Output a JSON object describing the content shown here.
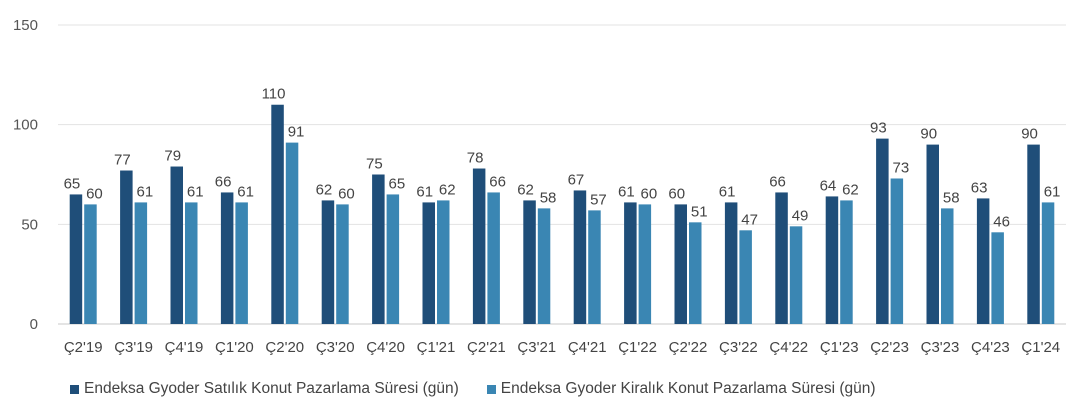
{
  "chart_data": {
    "type": "bar",
    "categories": [
      "Ç2'19",
      "Ç3'19",
      "Ç4'19",
      "Ç1'20",
      "Ç2'20",
      "Ç3'20",
      "Ç4'20",
      "Ç1'21",
      "Ç2'21",
      "Ç3'21",
      "Ç4'21",
      "Ç1'22",
      "Ç2'22",
      "Ç3'22",
      "Ç4'22",
      "Ç1'23",
      "Ç2'23",
      "Ç3'23",
      "Ç4'23",
      "Ç1'24"
    ],
    "series": [
      {
        "name": "Endeksa Gyoder Satılık Konut Pazarlama Süresi (gün)",
        "color": "#1f4e79",
        "values": [
          65,
          77,
          79,
          66,
          110,
          62,
          75,
          61,
          78,
          62,
          67,
          61,
          60,
          61,
          66,
          64,
          93,
          90,
          63,
          90
        ]
      },
      {
        "name": "Endeksa Gyoder Kiralık Konut Pazarlama Süresi (gün)",
        "color": "#3a86b3",
        "values": [
          60,
          61,
          61,
          61,
          91,
          60,
          65,
          62,
          66,
          58,
          57,
          60,
          51,
          47,
          49,
          62,
          73,
          58,
          46,
          61
        ]
      }
    ],
    "y_ticks": [
      0,
      50,
      100,
      150
    ],
    "ylim": [
      0,
      150
    ],
    "grid": true,
    "legend_position": "bottom"
  }
}
